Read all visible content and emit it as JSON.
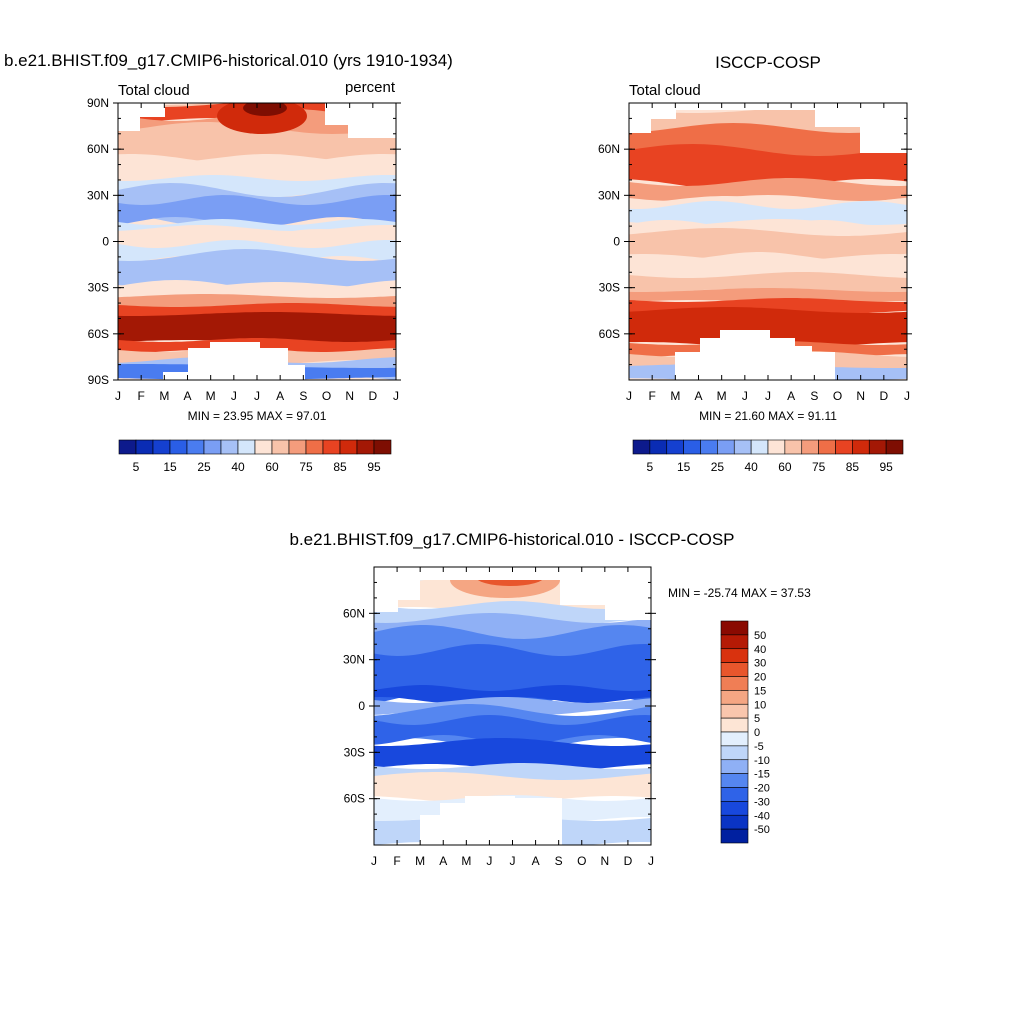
{
  "chart_data": [
    {
      "type": "heatmap",
      "title": "b.e21.BHIST.f09_g17.CMIP6-historical.010 (yrs 1910-1934)",
      "left_label": "Total cloud",
      "right_label": "percent",
      "x_ticklabels": [
        "J",
        "F",
        "M",
        "A",
        "M",
        "J",
        "J",
        "A",
        "S",
        "O",
        "N",
        "D",
        "J"
      ],
      "y_ticklabels": [
        "90N",
        "60N",
        "30N",
        "0",
        "30S",
        "60S",
        "90S"
      ],
      "y_range": [
        90,
        -90
      ],
      "stats_text": "MIN =  23.95 MAX =  97.01",
      "min": 23.95,
      "max": 97.01,
      "colorbar_labels": [
        "5",
        "15",
        "25",
        "40",
        "60",
        "75",
        "85",
        "95"
      ],
      "colorbar_orientation": "horizontal"
    },
    {
      "type": "heatmap",
      "title": "ISCCP-COSP",
      "left_label": "Total cloud",
      "x_ticklabels": [
        "J",
        "F",
        "M",
        "A",
        "M",
        "J",
        "J",
        "A",
        "S",
        "O",
        "N",
        "D",
        "J"
      ],
      "y_ticklabels": [
        "60N",
        "30N",
        "0",
        "30S",
        "60S"
      ],
      "y_range": [
        90,
        -90
      ],
      "stats_text": "MIN =  21.60 MAX =  91.11",
      "min": 21.6,
      "max": 91.11,
      "colorbar_labels": [
        "5",
        "15",
        "25",
        "40",
        "60",
        "75",
        "85",
        "95"
      ],
      "colorbar_orientation": "horizontal"
    },
    {
      "type": "heatmap",
      "title": "b.e21.BHIST.f09_g17.CMIP6-historical.010 - ISCCP-COSP",
      "x_ticklabels": [
        "J",
        "F",
        "M",
        "A",
        "M",
        "J",
        "J",
        "A",
        "S",
        "O",
        "N",
        "D",
        "J"
      ],
      "y_ticklabels": [
        "60N",
        "30N",
        "0",
        "30S",
        "60S"
      ],
      "y_range": [
        90,
        -90
      ],
      "stats_text": "MIN = -25.74 MAX =  37.53",
      "min": -25.74,
      "max": 37.53,
      "colorbar_labels": [
        "50",
        "40",
        "30",
        "20",
        "15",
        "10",
        "5",
        "0",
        "-5",
        "-10",
        "-15",
        "-20",
        "-30",
        "-40",
        "-50"
      ],
      "colorbar_orientation": "vertical"
    }
  ],
  "colors": {
    "seq_palette": [
      "#0d1a8c",
      "#0a2cb4",
      "#1540d0",
      "#2a5ee6",
      "#4a7cf0",
      "#7a9ef4",
      "#a6c0f6",
      "#d4e6fb",
      "#fde4d6",
      "#f8c3aa",
      "#f49c7c",
      "#ef6e47",
      "#e84322",
      "#d02a0b",
      "#a31805",
      "#7e0e02"
    ],
    "diff_palette": [
      "#000080",
      "#0020a0",
      "#0a34c4",
      "#1848dd",
      "#2f63e8",
      "#5586f0",
      "#8fb0f5",
      "#bfd6f9",
      "#e3effd",
      "#fde5d5",
      "#f9c6ad",
      "#f5a683",
      "#f07e55",
      "#e8562c",
      "#d9320e",
      "#b51a05",
      "#8a0a01"
    ],
    "axis": "#000000",
    "missing": "#ffffff"
  }
}
